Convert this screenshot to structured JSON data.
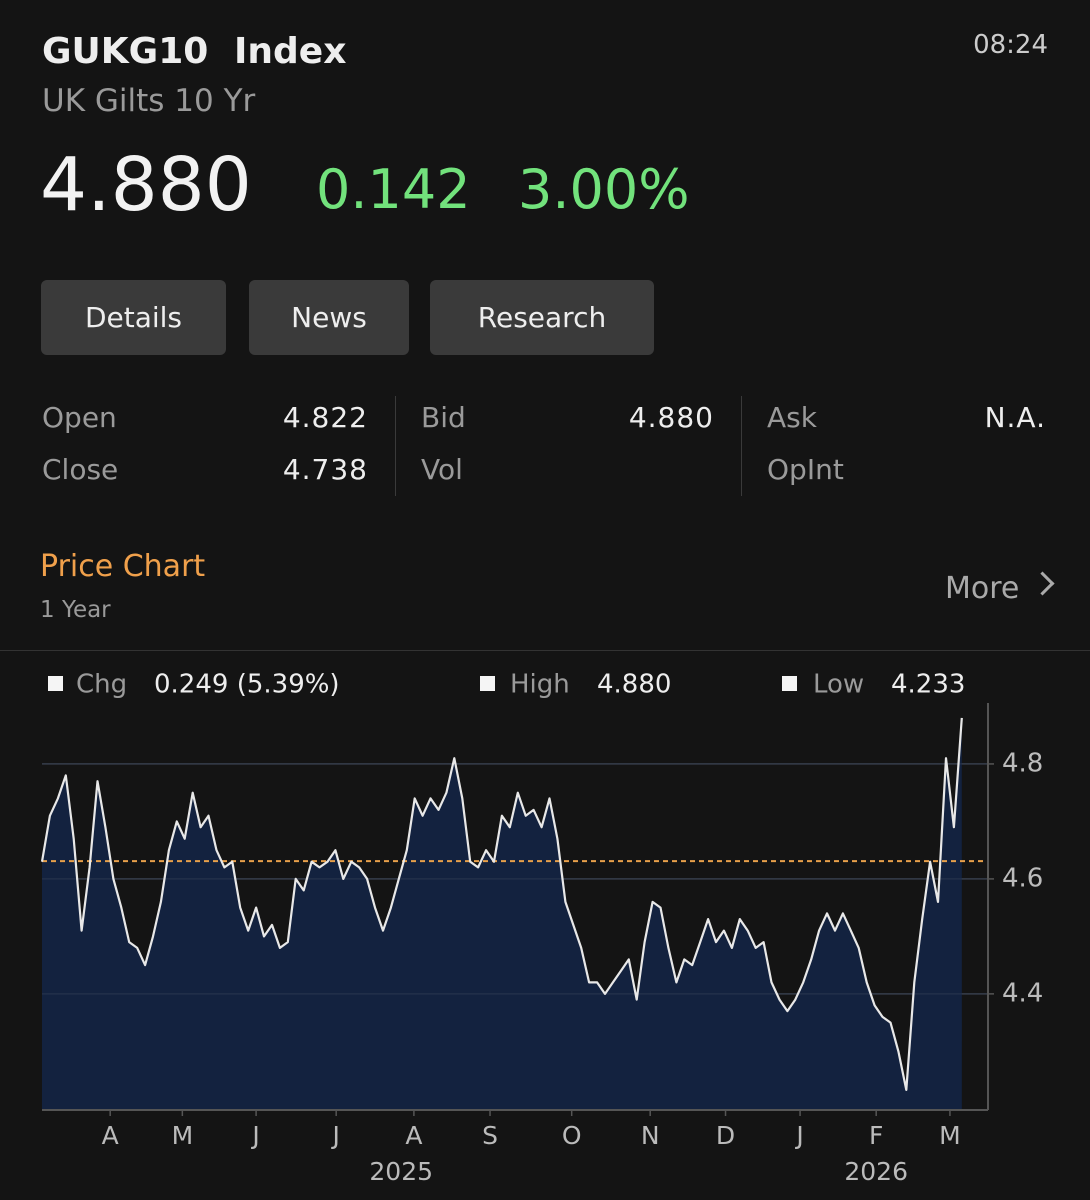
{
  "header": {
    "ticker": "GUKG10",
    "asset_class": "Index",
    "name": "UK Gilts 10 Yr",
    "time": "08:24"
  },
  "quote": {
    "last": "4.880",
    "change": "0.142",
    "change_percent": "3.00%"
  },
  "tabs": [
    "Details",
    "News",
    "Research"
  ],
  "stats": [
    [
      {
        "label": "Open",
        "value": "4.822"
      },
      {
        "label": "Close",
        "value": "4.738"
      }
    ],
    [
      {
        "label": "Bid",
        "value": "4.880"
      },
      {
        "label": "Vol"
      }
    ],
    [
      {
        "label": "Ask",
        "value": "N.A."
      },
      {
        "label": "OpInt"
      }
    ]
  ],
  "section": {
    "title": "Price Chart",
    "period": "1 Year",
    "more": "More"
  },
  "chart_data": {
    "type": "area",
    "summary": [
      {
        "label": "Chg",
        "value": "0.249 (5.39%)"
      },
      {
        "label": "High",
        "value": "4.880"
      },
      {
        "label": "Low",
        "value": "4.233"
      }
    ],
    "values": [
      4.63,
      4.71,
      4.74,
      4.78,
      4.67,
      4.51,
      4.62,
      4.77,
      4.69,
      4.6,
      4.55,
      4.49,
      4.48,
      4.45,
      4.5,
      4.56,
      4.65,
      4.7,
      4.67,
      4.75,
      4.69,
      4.71,
      4.65,
      4.62,
      4.63,
      4.55,
      4.51,
      4.55,
      4.5,
      4.52,
      4.48,
      4.49,
      4.6,
      4.58,
      4.63,
      4.62,
      4.63,
      4.65,
      4.6,
      4.63,
      4.62,
      4.6,
      4.55,
      4.51,
      4.55,
      4.6,
      4.65,
      4.74,
      4.71,
      4.74,
      4.72,
      4.75,
      4.81,
      4.74,
      4.63,
      4.62,
      4.65,
      4.63,
      4.71,
      4.69,
      4.75,
      4.71,
      4.72,
      4.69,
      4.74,
      4.67,
      4.56,
      4.52,
      4.48,
      4.42,
      4.42,
      4.4,
      4.42,
      4.44,
      4.46,
      4.39,
      4.49,
      4.56,
      4.55,
      4.48,
      4.42,
      4.46,
      4.45,
      4.49,
      4.53,
      4.49,
      4.51,
      4.48,
      4.53,
      4.51,
      4.48,
      4.49,
      4.42,
      4.39,
      4.37,
      4.39,
      4.42,
      4.46,
      4.51,
      4.54,
      4.51,
      4.54,
      4.51,
      4.48,
      4.42,
      4.38,
      4.36,
      4.35,
      4.3,
      4.233,
      4.42,
      4.53,
      4.63,
      4.56,
      4.81,
      4.69,
      4.88
    ],
    "xlim": [
      0,
      119.3
    ],
    "xticks": [
      {
        "value": 8.6,
        "label": "A"
      },
      {
        "value": 17.7,
        "label": "M"
      },
      {
        "value": 27.0,
        "label": "J"
      },
      {
        "value": 37.1,
        "label": "J"
      },
      {
        "value": 46.9,
        "label": "A"
      },
      {
        "value": 56.5,
        "label": "S"
      },
      {
        "value": 66.8,
        "label": "O"
      },
      {
        "value": 76.7,
        "label": "N"
      },
      {
        "value": 86.2,
        "label": "D"
      },
      {
        "value": 95.6,
        "label": "J"
      },
      {
        "value": 105.2,
        "label": "F"
      },
      {
        "value": 114.5,
        "label": "M"
      }
    ],
    "year_ticks": [
      {
        "value": 45.3,
        "label": "2025"
      },
      {
        "value": 105.2,
        "label": "2026"
      }
    ],
    "ylim": [
      4.198,
      4.906
    ],
    "yticks": [
      4.4,
      4.6,
      4.8
    ],
    "grid": true,
    "color": "#e8e8e8",
    "fill": "#13223f",
    "reference_line": 4.631,
    "reference_color": "#e8a04a"
  }
}
